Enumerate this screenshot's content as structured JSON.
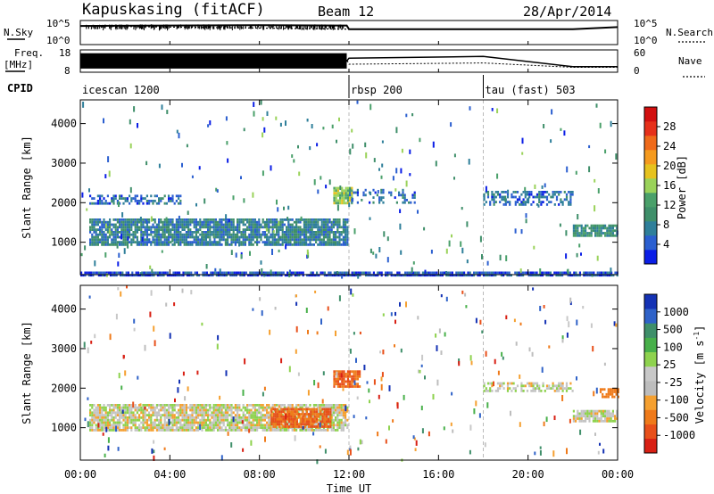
{
  "header": {
    "station": "Kapuskasing (fitACF)",
    "beam": "Beam 12",
    "date": "28/Apr/2014"
  },
  "noise_panel": {
    "left_label": "N.Sky",
    "right_label": "N.Search",
    "left_ticks": [
      "10^5",
      "10^0"
    ],
    "right_ticks": [
      "10^5",
      "10^0"
    ]
  },
  "freq_panel": {
    "left_label": "Freq.",
    "left_unit": "[MHz]",
    "right_label": "Nave",
    "left_ticks": [
      "18",
      "8"
    ],
    "right_ticks": [
      "60",
      "0"
    ]
  },
  "cpid": {
    "label": "CPID",
    "segments": [
      {
        "name": "icescan 1200",
        "start_hour": 0
      },
      {
        "name": "rbsp 200",
        "start_hour": 12
      },
      {
        "name": "tau (fast) 503",
        "start_hour": 18
      }
    ]
  },
  "time_axis": {
    "label": "Time UT",
    "ticks": [
      "00:00",
      "04:00",
      "08:00",
      "12:00",
      "16:00",
      "20:00",
      "00:00"
    ]
  },
  "power_panel": {
    "ylabel": "Slant Range [km]",
    "yticks": [
      "4000",
      "3000",
      "2000",
      "1000"
    ],
    "colorbar_label": "Power [dB]",
    "colorbar_ticks": [
      "28",
      "24",
      "20",
      "16",
      "12",
      "8",
      "4"
    ],
    "colors": [
      "#0b1ee6",
      "#2b5fd0",
      "#2f7f9a",
      "#3f8f6a",
      "#4aa06a",
      "#9ad25a",
      "#e6c21e",
      "#f59a1e",
      "#ef6a1a",
      "#e6301a",
      "#d21010"
    ]
  },
  "velocity_panel": {
    "ylabel": "Slant Range [km]",
    "yticks": [
      "4000",
      "3000",
      "2000",
      "1000"
    ],
    "colorbar_label": "Velocity [m s",
    "colorbar_label_sup": "-1",
    "colorbar_label_end": "]",
    "colorbar_ticks": [
      "1000",
      "500",
      "100",
      "25",
      "-25",
      "-100",
      "-500",
      "-1000"
    ],
    "colors": [
      "#1432b4",
      "#2f62c8",
      "#3f8f6a",
      "#48b04a",
      "#8ed24e",
      "#c8c8c8",
      "#bdbdbd",
      "#f5a030",
      "#ef7a1a",
      "#e8501a",
      "#d82014"
    ],
    "ground_scatter_color": "#c4c4c4"
  },
  "chart_data": [
    {
      "type": "line",
      "title": "Kapuskasing (fitACF)",
      "subtitle": "Beam 12",
      "xlabel": "",
      "ylabel": "N.Sky",
      "yscale": "log",
      "x_unit": "hour UT",
      "series": [
        {
          "name": "N.Sky",
          "x": [
            0,
            4,
            8,
            11.9,
            12,
            16,
            20,
            22,
            24
          ],
          "values": [
            20000,
            25000,
            30000,
            25000,
            3000,
            3000,
            3000,
            3000,
            10000
          ]
        },
        {
          "name": "N.Search",
          "x": [
            0,
            12,
            22,
            24
          ],
          "values": [
            20000,
            3000,
            3000,
            10000
          ]
        }
      ]
    },
    {
      "type": "line",
      "xlabel": "",
      "ylabel": "Freq. [MHz]",
      "ylim": [
        8,
        18
      ],
      "y2lim": [
        0,
        60
      ],
      "x_unit": "hour UT",
      "series": [
        {
          "name": "Freq.",
          "x": [
            0,
            11.9,
            12,
            18,
            22,
            24
          ],
          "values": [
            13,
            13,
            14.5,
            15.5,
            10,
            10
          ]
        },
        {
          "name": "Nave",
          "x": [
            0,
            11.9,
            12,
            18,
            22,
            24
          ],
          "values": [
            35,
            35,
            20,
            24,
            10,
            10
          ]
        }
      ]
    },
    {
      "type": "heatmap",
      "xlabel": "Time UT",
      "ylabel": "Slant Range [km]",
      "xlim": [
        "00:00",
        "00:00"
      ],
      "ylim": [
        180,
        4600
      ],
      "colorbar": {
        "label": "Power [dB]",
        "range": [
          0,
          30
        ]
      },
      "regions": [
        {
          "t_start": 0.4,
          "t_end": 11.9,
          "r_start": 950,
          "r_end": 1600,
          "density": "high",
          "dominant_value_dB": 8
        },
        {
          "t_start": 0.4,
          "t_end": 4.5,
          "r_start": 1950,
          "r_end": 2200,
          "density": "medium",
          "dominant_value_dB": 6
        },
        {
          "t_start": 11.3,
          "t_end": 12.1,
          "r_start": 2000,
          "r_end": 2400,
          "density": "high",
          "dominant_value_dB": 16
        },
        {
          "t_start": 12,
          "t_end": 15,
          "r_start": 2000,
          "r_end": 2350,
          "density": "low",
          "dominant_value_dB": 6
        },
        {
          "t_start": 18,
          "t_end": 22,
          "r_start": 1950,
          "r_end": 2300,
          "density": "medium",
          "dominant_value_dB": 6
        },
        {
          "t_start": 22,
          "t_end": 24,
          "r_start": 1150,
          "r_end": 1450,
          "density": "high",
          "dominant_value_dB": 10
        },
        {
          "t_start": 0,
          "t_end": 24,
          "r_start": 180,
          "r_end": 260,
          "density": "high",
          "dominant_value_dB": 4
        }
      ]
    },
    {
      "type": "heatmap",
      "xlabel": "Time UT",
      "ylabel": "Slant Range [km]",
      "xlim": [
        "00:00",
        "00:00"
      ],
      "ylim": [
        180,
        4600
      ],
      "colorbar": {
        "label": "Velocity [m s-1]",
        "range": [
          -1000,
          1000
        ]
      },
      "regions": [
        {
          "t_start": 0.4,
          "t_end": 11.9,
          "r_start": 950,
          "r_end": 1600,
          "density": "high",
          "dominant_value_ms": 0
        },
        {
          "t_start": 8.5,
          "t_end": 11.2,
          "r_start": 1000,
          "r_end": 1500,
          "density": "high",
          "dominant_value_ms": -300
        },
        {
          "t_start": 11.3,
          "t_end": 12.5,
          "r_start": 2050,
          "r_end": 2450,
          "density": "high",
          "dominant_value_ms": -300
        },
        {
          "t_start": 18,
          "t_end": 22,
          "r_start": 1950,
          "r_end": 2150,
          "density": "medium",
          "dominant_value_ms": 0
        },
        {
          "t_start": 22,
          "t_end": 24,
          "r_start": 1150,
          "r_end": 1450,
          "density": "high",
          "dominant_value_ms": 0
        },
        {
          "t_start": 23.2,
          "t_end": 24,
          "r_start": 1800,
          "r_end": 2000,
          "density": "medium",
          "dominant_value_ms": -200
        }
      ]
    }
  ]
}
